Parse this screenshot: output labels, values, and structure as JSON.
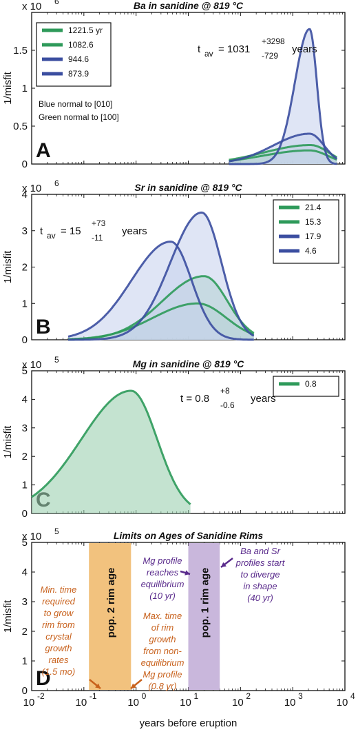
{
  "figure": {
    "xlabel": "years before eruption",
    "ylabel": "1/misfit"
  },
  "colors": {
    "blue": "#3b4ea0",
    "blue_fill": "#c9d3ee",
    "green": "#2e9a5a",
    "green_fill": "#9dd1b1",
    "orange": "#c8611c",
    "orange_band": "#f2c27e",
    "purple": "#5a2b8c",
    "purple_band": "#c9b7dc"
  },
  "chart_data": [
    {
      "panel": "A",
      "type": "area",
      "title": "Ba in sanidine @ 819 °C",
      "xscale": "log",
      "xlim": [
        0.01,
        10000
      ],
      "ylim": [
        0,
        2000000
      ],
      "y_multiplier": "x 10",
      "y_multiplier_exp": "6",
      "yticks": [
        "0",
        "0.5",
        "1",
        "1.5"
      ],
      "ylabel": "1/misfit",
      "legend": {
        "position": "top-left",
        "entries": [
          "1221.5 yr",
          "1082.6",
          "944.6",
          "873.9"
        ]
      },
      "annotation": {
        "t": "t",
        "sub": "av",
        "eq": " = 1031",
        "sup": "+3298",
        "inf": "-729",
        "unit": "years"
      },
      "note_blue": "Blue normal to [010]",
      "note_green": "Green normal to [100]",
      "series": [
        {
          "name": "1221.5 yr",
          "color": "green",
          "peak_x": 2200,
          "peak_y": 250000,
          "width_left": 0.9,
          "width_right": 0.35,
          "x_min": 60,
          "x_max": 7000
        },
        {
          "name": "1082.6",
          "color": "green",
          "peak_x": 2100,
          "peak_y": 180000,
          "width_left": 0.9,
          "width_right": 0.35,
          "x_min": 60,
          "x_max": 7000
        },
        {
          "name": "944.6",
          "color": "blue",
          "peak_x": 2100,
          "peak_y": 400000,
          "width_left": 0.7,
          "width_right": 0.28,
          "x_min": 60,
          "x_max": 7000
        },
        {
          "name": "873.9",
          "color": "blue",
          "peak_x": 2100,
          "peak_y": 1780000,
          "width_left": 0.28,
          "width_right": 0.14,
          "x_min": 60,
          "x_max": 7000
        }
      ]
    },
    {
      "panel": "B",
      "type": "area",
      "title": "Sr in sanidine @ 819 °C",
      "xscale": "log",
      "xlim": [
        0.01,
        10000
      ],
      "ylim": [
        0,
        4000000
      ],
      "y_multiplier": "x 10",
      "y_multiplier_exp": "6",
      "yticks": [
        "0",
        "1",
        "2",
        "3",
        "4"
      ],
      "ylabel": "1/misfit",
      "legend": {
        "position": "top-right",
        "entries": [
          "21.4",
          "15.3",
          "17.9",
          "4.6"
        ]
      },
      "annotation": {
        "t": "t",
        "sub": "av",
        "eq": " = 15",
        "sup": "+73",
        "inf": "-11",
        "unit": "years"
      },
      "series": [
        {
          "name": "21.4",
          "color": "green",
          "peak_x": 20,
          "peak_y": 1750000,
          "width_left": 0.8,
          "width_right": 0.45,
          "x_min": 0.05,
          "x_max": 180
        },
        {
          "name": "15.3",
          "color": "green",
          "peak_x": 15,
          "peak_y": 1000000,
          "width_left": 0.85,
          "width_right": 0.55,
          "x_min": 0.05,
          "x_max": 180
        },
        {
          "name": "17.9",
          "color": "blue",
          "peak_x": 18,
          "peak_y": 3500000,
          "width_left": 0.6,
          "width_right": 0.38,
          "x_min": 0.05,
          "x_max": 180
        },
        {
          "name": "4.6",
          "color": "blue",
          "peak_x": 4.6,
          "peak_y": 2700000,
          "width_left": 0.75,
          "width_right": 0.4,
          "x_min": 0.05,
          "x_max": 180
        }
      ]
    },
    {
      "panel": "C",
      "type": "area",
      "title": "Mg in sanidine @ 819 °C",
      "xscale": "log",
      "xlim": [
        0.01,
        10000
      ],
      "ylim": [
        0,
        500000
      ],
      "y_multiplier": "x 10",
      "y_multiplier_exp": "5",
      "yticks": [
        "0",
        "1",
        "2",
        "3",
        "4",
        "5"
      ],
      "ylabel": "1/misfit",
      "legend": {
        "position": "top-right",
        "entries": [
          "0.8"
        ]
      },
      "annotation": {
        "t": "t = 0.8",
        "sub": "",
        "eq": "",
        "sup": "+8",
        "inf": "-0.6",
        "unit": "years"
      },
      "series": [
        {
          "name": "0.8",
          "color": "green",
          "peak_x": 0.8,
          "peak_y": 430000,
          "width_left": 0.95,
          "width_right": 0.5,
          "x_min": 0.01,
          "x_max": 11
        }
      ]
    },
    {
      "panel": "D",
      "type": "bar",
      "title": "Limits on Ages of Sanidine Rims",
      "xscale": "log",
      "xlim": [
        0.01,
        10000
      ],
      "ylim": [
        0,
        500000
      ],
      "y_multiplier": "x 10",
      "y_multiplier_exp": "5",
      "yticks": [
        "0",
        "1",
        "2",
        "3",
        "4",
        "5"
      ],
      "ylabel": "1/misfit",
      "xticks": [
        {
          "base": "10",
          "exp": "-2"
        },
        {
          "base": "10",
          "exp": "-1"
        },
        {
          "base": "10",
          "exp": "0"
        },
        {
          "base": "10",
          "exp": "1"
        },
        {
          "base": "10",
          "exp": "2"
        },
        {
          "base": "10",
          "exp": "3"
        },
        {
          "base": "10",
          "exp": "4"
        }
      ],
      "bands": [
        {
          "label": "pop. 2 rim age",
          "x_from": 0.125,
          "x_to": 0.8,
          "color": "orange"
        },
        {
          "label": "pop. 1 rim age",
          "x_from": 10,
          "x_to": 40,
          "color": "purple"
        }
      ],
      "annotations": {
        "min_time": [
          "Min. time",
          "required",
          "to grow",
          "rim from",
          "crystal",
          "growth",
          "rates",
          "(1.5 mo)"
        ],
        "max_time": [
          "Max. time",
          "of rim",
          "growth",
          "from non-",
          "equilibrium",
          "Mg profile",
          "(0.8 yr)"
        ],
        "mg_profile": [
          "Mg profile",
          "reaches",
          "equilibrium",
          "(10 yr)"
        ],
        "ba_sr": [
          "Ba and Sr",
          "profiles start",
          "to diverge",
          "in shape",
          "(40 yr)"
        ]
      }
    }
  ]
}
